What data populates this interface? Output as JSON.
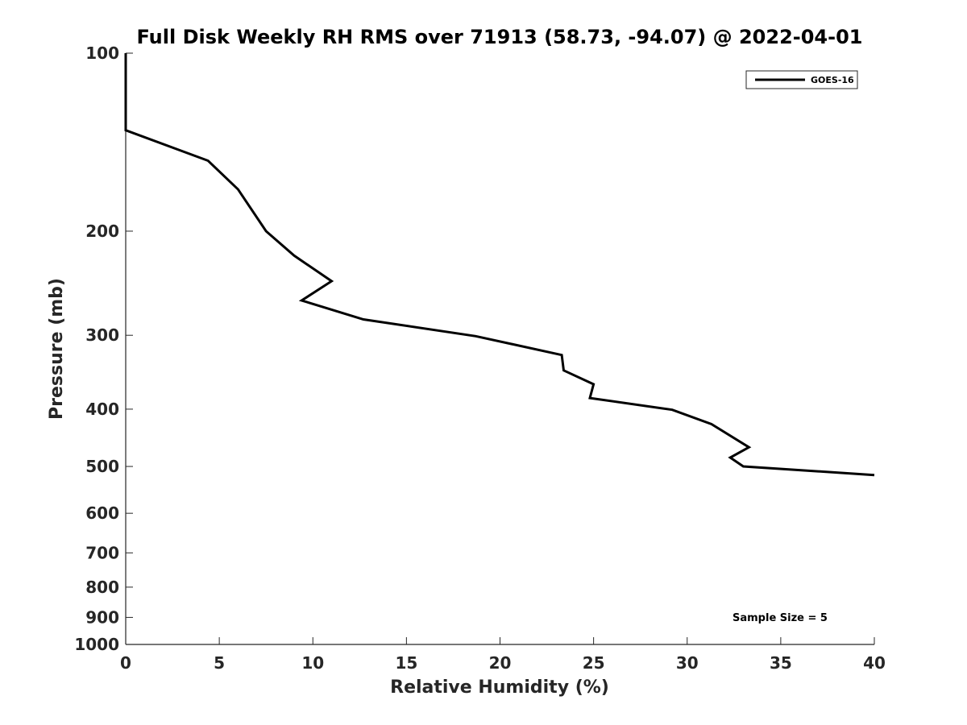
{
  "chart_data": {
    "type": "line",
    "title": "Full Disk Weekly RH RMS over 71913 (58.73, -94.07) @ 2022-04-01",
    "xlabel": "Relative Humidity (%)",
    "ylabel": "Pressure (mb)",
    "xlim": [
      0,
      40
    ],
    "ylim": [
      1000,
      100
    ],
    "y_scale": "log",
    "y_reversed": true,
    "grid": false,
    "x_ticks": [
      0,
      5,
      10,
      15,
      20,
      25,
      30,
      35,
      40
    ],
    "y_ticks": [
      100,
      200,
      300,
      400,
      500,
      600,
      700,
      800,
      900,
      1000
    ],
    "legend_position": "top-right",
    "series": [
      {
        "name": "GOES-16",
        "color": "#000000",
        "points": [
          {
            "x": 0.0,
            "y": 100
          },
          {
            "x": 0.0,
            "y": 135
          },
          {
            "x": 4.4,
            "y": 152
          },
          {
            "x": 6.0,
            "y": 170
          },
          {
            "x": 7.5,
            "y": 200
          },
          {
            "x": 9.0,
            "y": 220
          },
          {
            "x": 11.0,
            "y": 243
          },
          {
            "x": 9.4,
            "y": 262
          },
          {
            "x": 12.7,
            "y": 282
          },
          {
            "x": 18.7,
            "y": 301
          },
          {
            "x": 23.3,
            "y": 324
          },
          {
            "x": 23.4,
            "y": 344
          },
          {
            "x": 25.0,
            "y": 363
          },
          {
            "x": 24.8,
            "y": 383
          },
          {
            "x": 29.2,
            "y": 401
          },
          {
            "x": 31.3,
            "y": 424
          },
          {
            "x": 33.3,
            "y": 464
          },
          {
            "x": 32.3,
            "y": 483
          },
          {
            "x": 33.0,
            "y": 500
          },
          {
            "x": 40.0,
            "y": 517
          }
        ]
      }
    ],
    "annotation": "Sample Size = 5"
  }
}
